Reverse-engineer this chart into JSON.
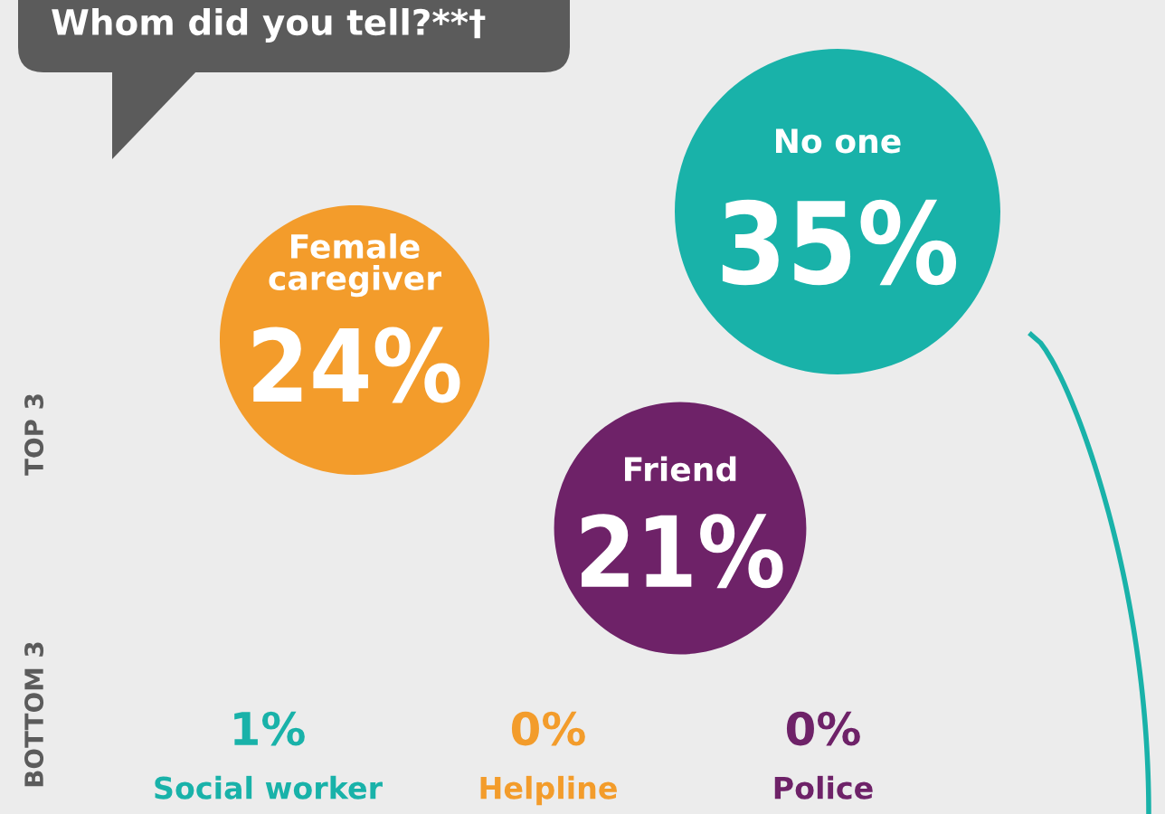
{
  "chart_data": {
    "type": "other",
    "title": "Whom did you tell?**†",
    "categories": [
      "No one",
      "Female caregiver",
      "Friend",
      "Social worker",
      "Helpline",
      "Police"
    ],
    "values": [
      35,
      24,
      21,
      1,
      0,
      0
    ],
    "value_labels": [
      "35%",
      "24%",
      "21%",
      "1%",
      "0%",
      "0%"
    ],
    "colors": [
      "#19b2a9",
      "#f39c2b",
      "#6e2268",
      "#19b2a9",
      "#f39c2b",
      "#6e2268"
    ],
    "annotations": [
      "TOP 3",
      "BOTTOM 3"
    ]
  }
}
